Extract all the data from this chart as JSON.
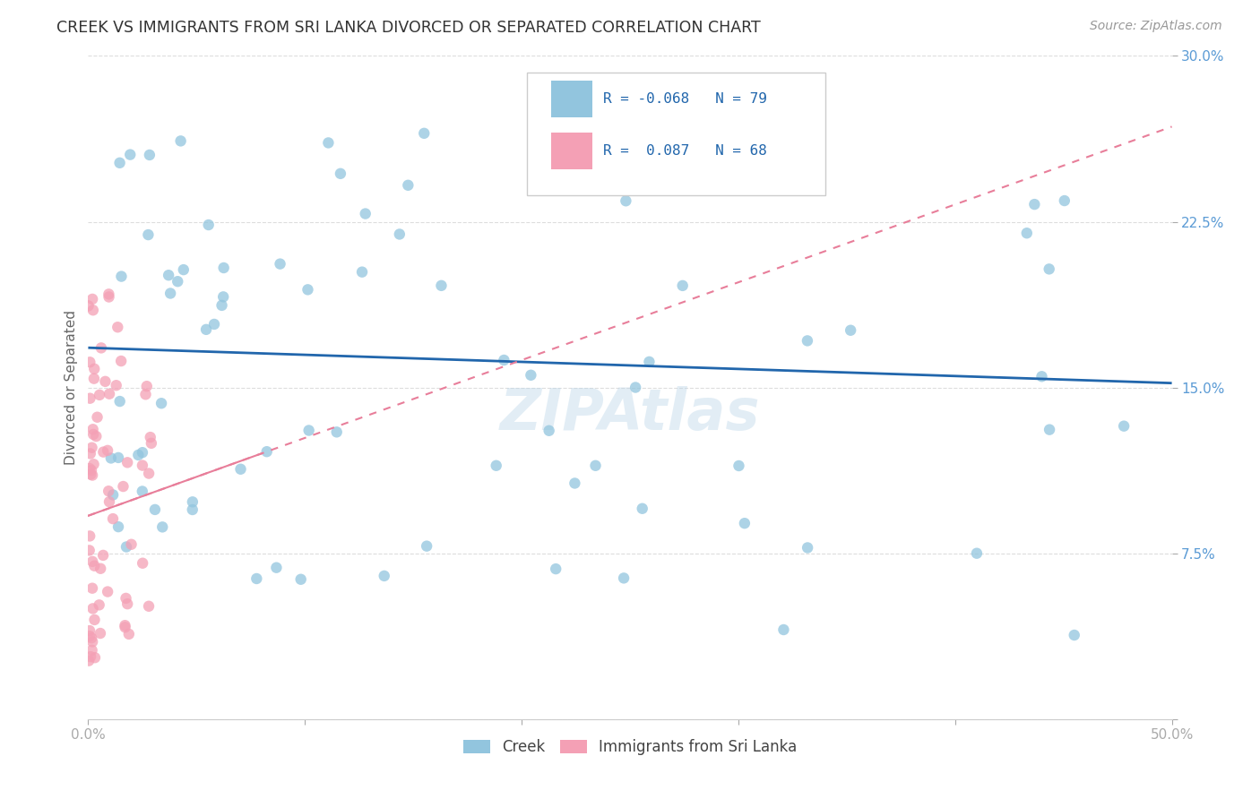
{
  "title": "CREEK VS IMMIGRANTS FROM SRI LANKA DIVORCED OR SEPARATED CORRELATION CHART",
  "source": "Source: ZipAtlas.com",
  "ylabel": "Divorced or Separated",
  "xlim": [
    0.0,
    0.5
  ],
  "ylim": [
    0.0,
    0.3
  ],
  "xticks": [
    0.0,
    0.1,
    0.2,
    0.3,
    0.4,
    0.5
  ],
  "yticks": [
    0.0,
    0.075,
    0.15,
    0.225,
    0.3
  ],
  "creek_color": "#92c5de",
  "creek_edge_color": "#92c5de",
  "sri_lanka_color": "#f4a0b5",
  "sri_lanka_edge_color": "#f4a0b5",
  "creek_line_color": "#2166ac",
  "sri_lanka_line_color": "#e87e9a",
  "R_creek": -0.068,
  "N_creek": 79,
  "R_sri_lanka": 0.087,
  "N_sri_lanka": 68,
  "creek_trend_x": [
    0.0,
    0.5
  ],
  "creek_trend_y": [
    0.168,
    0.152
  ],
  "sri_trend_x": [
    0.0,
    0.5
  ],
  "sri_trend_y": [
    0.092,
    0.268
  ]
}
